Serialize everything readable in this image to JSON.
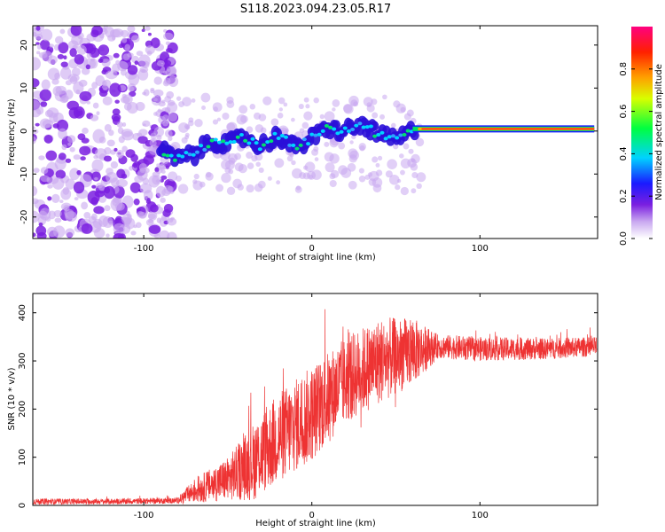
{
  "title": "S118.2023.094.23.05.R17",
  "chart_data": [
    {
      "type": "heatmap",
      "xlabel": "Height of straight line (km)",
      "ylabel": "Frequency (Hz)",
      "xlim": [
        -166,
        170
      ],
      "ylim": [
        -25,
        24.5
      ],
      "xticks": [
        -100,
        0,
        100
      ],
      "yticks": [
        -20,
        -10,
        0,
        10,
        20
      ],
      "colorbar": {
        "label": "Normalized spectral amplitude",
        "range": [
          0,
          1
        ],
        "ticks": [
          "0.0",
          "0.2",
          "0.4",
          "0.6",
          "0.8"
        ],
        "tick_values": [
          0,
          0.2,
          0.4,
          0.6,
          0.8
        ]
      },
      "ridge": {
        "description_points": [
          {
            "x": -90,
            "y": -4.5
          },
          {
            "x": -80,
            "y": -6.5
          },
          {
            "x": -70,
            "y": -5.5
          },
          {
            "x": -60,
            "y": -2.5
          },
          {
            "x": -50,
            "y": -3.0
          },
          {
            "x": -40,
            "y": -1.5
          },
          {
            "x": -30,
            "y": -3.5
          },
          {
            "x": -20,
            "y": -1.0
          },
          {
            "x": -10,
            "y": -4.0
          },
          {
            "x": 0,
            "y": -1.5
          },
          {
            "x": 10,
            "y": 0.5
          },
          {
            "x": 20,
            "y": 0.0
          },
          {
            "x": 30,
            "y": 1.5
          },
          {
            "x": 40,
            "y": -1.0
          },
          {
            "x": 50,
            "y": -2.0
          },
          {
            "x": 60,
            "y": 0.0
          },
          {
            "x": 70,
            "y": 0.5
          },
          {
            "x": 100,
            "y": 0.5
          },
          {
            "x": 130,
            "y": 0.5
          },
          {
            "x": 168,
            "y": 0.5
          }
        ]
      }
    },
    {
      "type": "line",
      "xlabel": "Height of straight line (km)",
      "ylabel": "SNR (10 * v/v)",
      "xlim": [
        -166,
        170
      ],
      "ylim": [
        0,
        440
      ],
      "xticks": [
        -100,
        0,
        100
      ],
      "yticks": [
        0,
        100,
        200,
        300,
        400
      ],
      "series_color": "#ee3333",
      "envelope": [
        {
          "x": -166,
          "mean": 8,
          "spread": 6
        },
        {
          "x": -120,
          "mean": 8,
          "spread": 6
        },
        {
          "x": -80,
          "mean": 10,
          "spread": 6
        },
        {
          "x": -70,
          "mean": 30,
          "spread": 25
        },
        {
          "x": -50,
          "mean": 55,
          "spread": 45
        },
        {
          "x": -35,
          "mean": 90,
          "spread": 80
        },
        {
          "x": -20,
          "mean": 140,
          "spread": 95
        },
        {
          "x": 0,
          "mean": 190,
          "spread": 100
        },
        {
          "x": 20,
          "mean": 260,
          "spread": 90
        },
        {
          "x": 40,
          "mean": 300,
          "spread": 90
        },
        {
          "x": 60,
          "mean": 320,
          "spread": 70
        },
        {
          "x": 75,
          "mean": 330,
          "spread": 25
        },
        {
          "x": 100,
          "mean": 325,
          "spread": 25
        },
        {
          "x": 140,
          "mean": 325,
          "spread": 22
        },
        {
          "x": 170,
          "mean": 330,
          "spread": 20
        }
      ]
    }
  ]
}
